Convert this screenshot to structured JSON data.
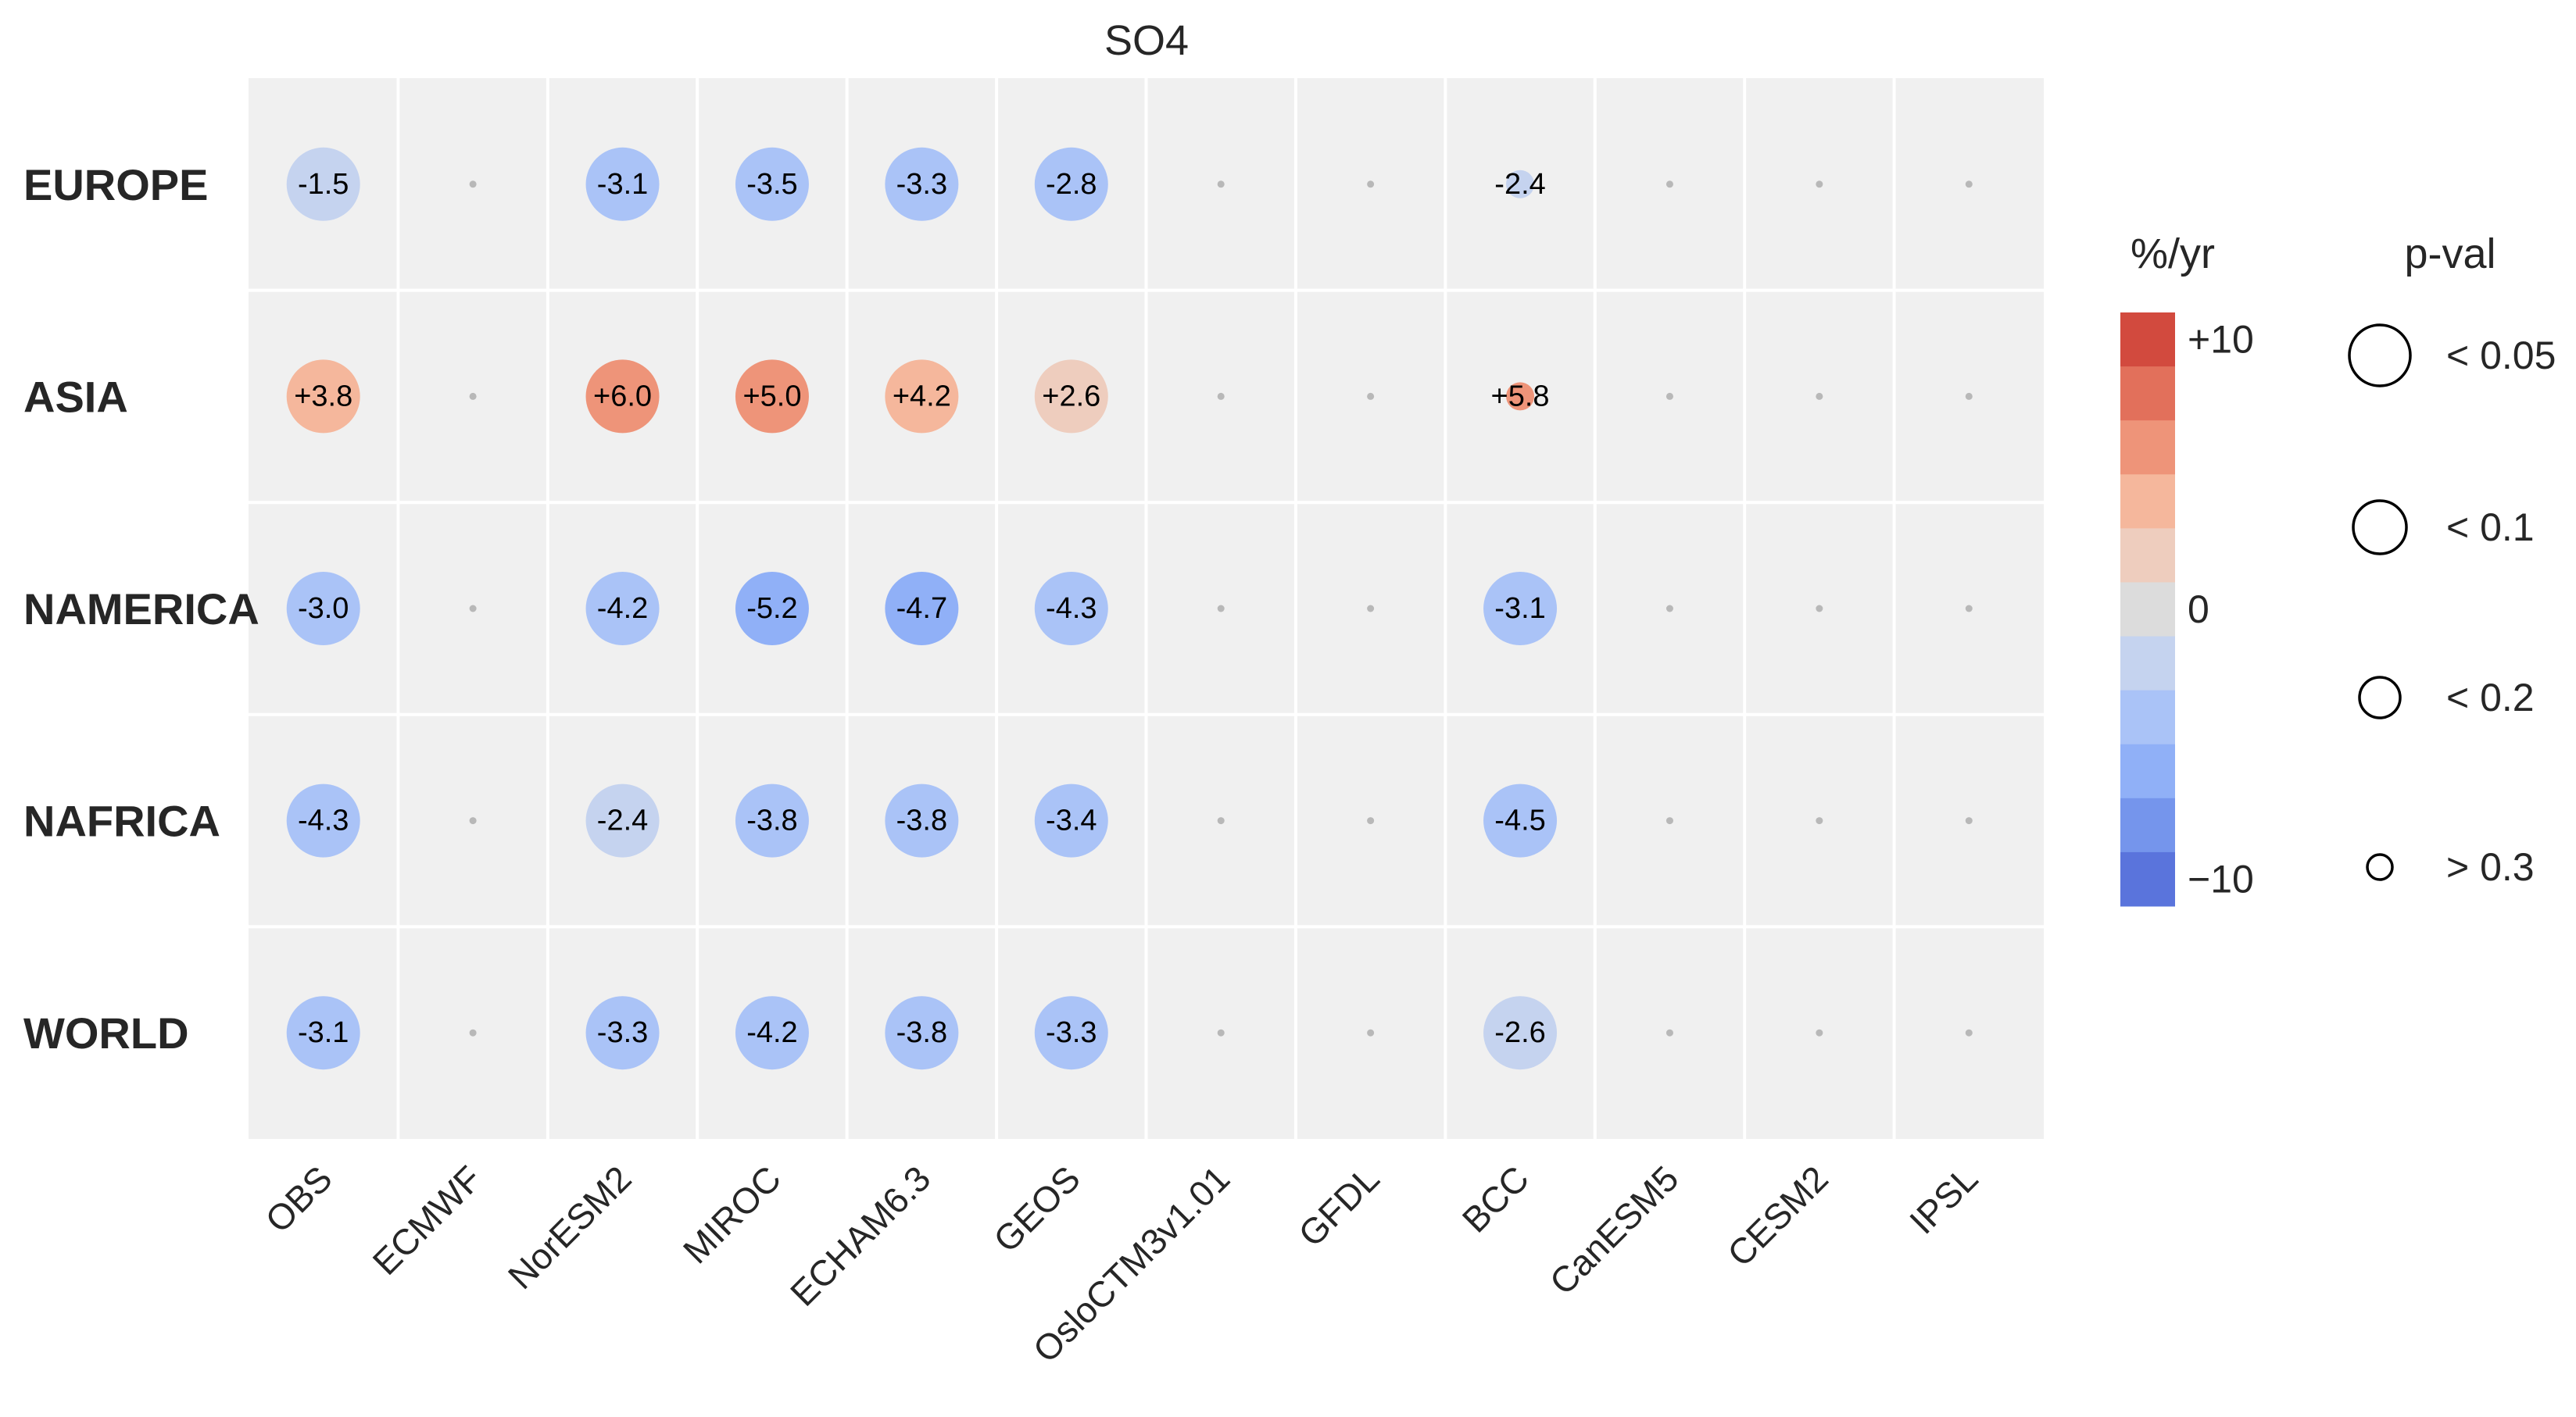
{
  "chart_data": {
    "type": "heatmap",
    "title": "SO4",
    "rows": [
      "EUROPE",
      "ASIA",
      "NAMERICA",
      "NAFRICA",
      "WORLD"
    ],
    "columns": [
      "OBS",
      "ECMWF",
      "NorESM2",
      "MIROC",
      "ECHAM6.3",
      "GEOS",
      "OsloCTM3v1.01",
      "GFDL",
      "BCC",
      "CanESM5",
      "CESM2",
      "IPSL"
    ],
    "values": [
      [
        -1.5,
        null,
        -3.1,
        -3.5,
        -3.3,
        -2.8,
        null,
        null,
        -2.4,
        null,
        null,
        null
      ],
      [
        3.8,
        null,
        6.0,
        5.0,
        4.2,
        2.6,
        null,
        null,
        5.8,
        null,
        null,
        null
      ],
      [
        -3.0,
        null,
        -4.2,
        -5.2,
        -4.7,
        -4.3,
        null,
        null,
        -3.1,
        null,
        null,
        null
      ],
      [
        -4.3,
        null,
        -2.4,
        -3.8,
        -3.8,
        -3.4,
        null,
        null,
        -4.5,
        null,
        null,
        null
      ],
      [
        -3.1,
        null,
        -3.3,
        -4.2,
        -3.8,
        -3.3,
        null,
        null,
        -2.6,
        null,
        null,
        null
      ]
    ],
    "labels": [
      [
        "-1.5",
        "",
        "-3.1",
        "-3.5",
        "-3.3",
        "-2.8",
        "",
        "",
        "-2.4",
        "",
        "",
        ""
      ],
      [
        "+3.8",
        "",
        "+6.0",
        "+5.0",
        "+4.2",
        "+2.6",
        "",
        "",
        "+5.8",
        "",
        "",
        ""
      ],
      [
        "-3.0",
        "",
        "-4.2",
        "-5.2",
        "-4.7",
        "-4.3",
        "",
        "",
        "-3.1",
        "",
        "",
        ""
      ],
      [
        "-4.3",
        "",
        "-2.4",
        "-3.8",
        "-3.8",
        "-3.4",
        "",
        "",
        "-4.5",
        "",
        "",
        ""
      ],
      [
        "-3.1",
        "",
        "-3.3",
        "-4.2",
        "-3.8",
        "-3.3",
        "",
        "",
        "-2.6",
        "",
        "",
        ""
      ]
    ],
    "pval_class": [
      [
        0,
        null,
        0,
        0,
        0,
        0,
        null,
        null,
        3,
        null,
        null,
        null
      ],
      [
        0,
        null,
        0,
        0,
        0,
        0,
        null,
        null,
        3,
        null,
        null,
        null
      ],
      [
        0,
        null,
        0,
        0,
        0,
        0,
        null,
        null,
        0,
        null,
        null,
        null
      ],
      [
        0,
        null,
        0,
        0,
        0,
        0,
        null,
        null,
        0,
        null,
        null,
        null
      ],
      [
        0,
        null,
        0,
        0,
        0,
        0,
        null,
        null,
        0,
        null,
        null,
        null
      ]
    ],
    "colorbar": {
      "title": "%/yr",
      "range": [
        -10,
        10
      ],
      "ticks": [
        {
          "value": 10,
          "label": "+10"
        },
        {
          "value": 0,
          "label": "0"
        },
        {
          "value": -10,
          "label": "−10"
        }
      ],
      "colors": [
        "#d24a3e",
        "#e2705b",
        "#ee9479",
        "#f5b79c",
        "#eecdbe",
        "#dcdcdc",
        "#c5d3ef",
        "#aac3f7",
        "#90b0f7",
        "#7595ec",
        "#5a74dc"
      ]
    },
    "pval_legend": {
      "title": "p-val",
      "items": [
        "< 0.05",
        "< 0.1",
        "< 0.2",
        "> 0.3"
      ]
    },
    "grid": true,
    "background": "#f0f0f0"
  }
}
